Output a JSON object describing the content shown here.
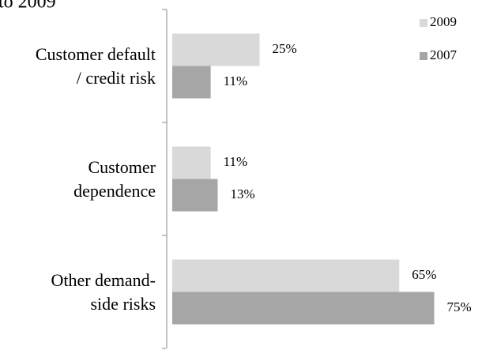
{
  "chart_data": {
    "type": "barh",
    "caption": "to 2009",
    "categories": [
      "Customer default\n/ credit risk",
      "Customer\ndependence",
      "Other demand-\nside risks"
    ],
    "series": [
      {
        "name": "2009",
        "color": "#d9d9d9",
        "values": [
          25,
          11,
          65
        ],
        "value_labels": [
          "25%",
          "11%",
          "65%"
        ]
      },
      {
        "name": "2007",
        "color": "#a6a6a6",
        "values": [
          11,
          13,
          75
        ],
        "value_labels": [
          "11%",
          "13%",
          "75%"
        ]
      }
    ],
    "legend": "top-right"
  }
}
